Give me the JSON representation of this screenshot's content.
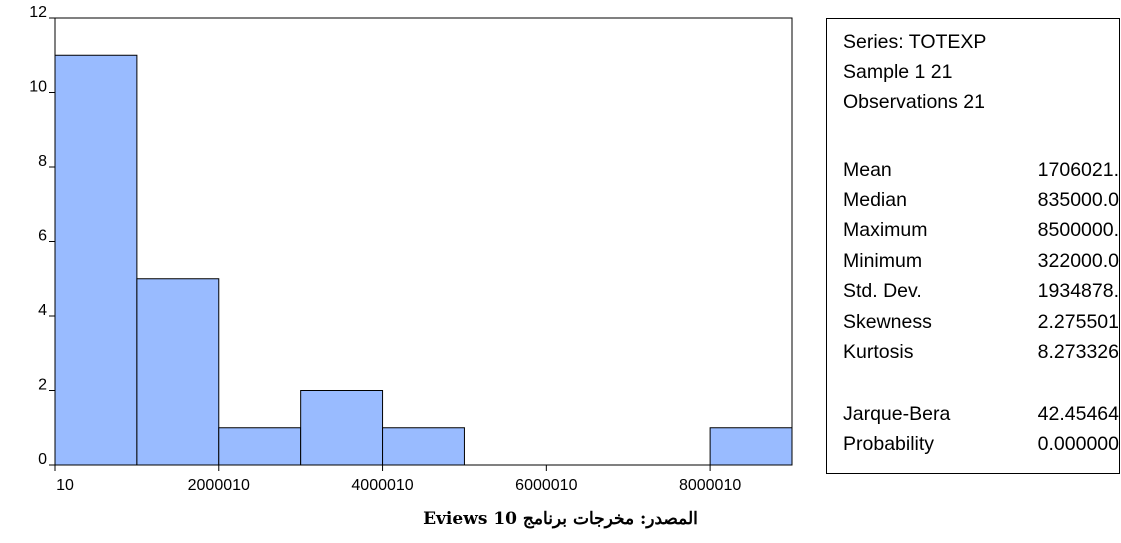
{
  "chart_data": {
    "type": "bar",
    "subtype": "histogram",
    "bins": [
      {
        "start": 10,
        "end": 1000010,
        "count": 11
      },
      {
        "start": 1000010,
        "end": 2000010,
        "count": 5
      },
      {
        "start": 2000010,
        "end": 3000010,
        "count": 1
      },
      {
        "start": 3000010,
        "end": 4000010,
        "count": 2
      },
      {
        "start": 4000010,
        "end": 5000010,
        "count": 1
      },
      {
        "start": 5000010,
        "end": 6000010,
        "count": 0
      },
      {
        "start": 6000010,
        "end": 7000010,
        "count": 0
      },
      {
        "start": 7000010,
        "end": 8000010,
        "count": 0
      },
      {
        "start": 8000010,
        "end": 9000010,
        "count": 1
      }
    ],
    "xlim": [
      10,
      9000010
    ],
    "ylim": [
      0,
      12
    ],
    "x_ticks": [
      "10",
      "2000010",
      "4000010",
      "6000010",
      "8000010"
    ],
    "y_ticks": [
      "0",
      "2",
      "4",
      "6",
      "8",
      "10",
      "12"
    ],
    "bar_color": "#99BBFF",
    "grid": false
  },
  "stats": {
    "header": [
      "Series: TOTEXP",
      "Sample 1 21",
      "Observations 21"
    ],
    "rows": [
      {
        "label": "Mean",
        "value": "1706021."
      },
      {
        "label": "Median",
        "value": "835000.0"
      },
      {
        "label": "Maximum",
        "value": "8500000."
      },
      {
        "label": "Minimum",
        "value": "322000.0"
      },
      {
        "label": "Std. Dev.",
        "value": "1934878."
      },
      {
        "label": "Skewness",
        "value": "2.275501"
      },
      {
        "label": "Kurtosis",
        "value": "8.273326"
      }
    ],
    "tests": [
      {
        "label": "Jarque-Bera",
        "value": "42.45464"
      },
      {
        "label": "Probability",
        "value": "0.000000"
      }
    ]
  },
  "caption": "المصدر: مخرجات برنامج 10 Eviews"
}
